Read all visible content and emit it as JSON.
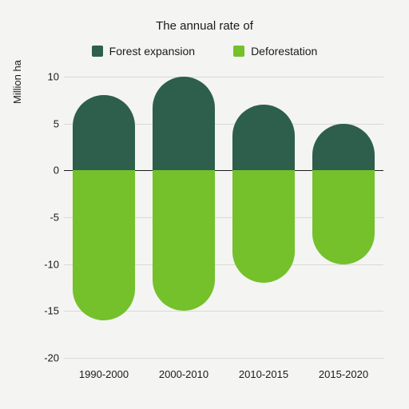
{
  "chart": {
    "type": "bar",
    "title": "The annual rate of",
    "title_fontsize": 15,
    "ylabel": "Million ha",
    "label_fontsize": 13,
    "background_color": "#f4f4f2",
    "grid_color": "#d9d9d6",
    "zero_line_color": "#1a1a1a",
    "ylim": [
      -20,
      10
    ],
    "ytick_step": 5,
    "yticks": [
      10,
      5,
      0,
      -5,
      -10,
      -15,
      -20
    ],
    "bar_width": 0.78,
    "categories": [
      "1990-2000",
      "2000-2010",
      "2010-2015",
      "2015-2020"
    ],
    "series": {
      "expansion": {
        "label": "Forest expansion",
        "color": "#2d5f4c",
        "values": [
          8,
          10,
          7,
          5
        ]
      },
      "deforestation": {
        "label": "Deforestation",
        "color": "#74c12b",
        "values": [
          -16,
          -15,
          -12,
          -10
        ]
      }
    }
  }
}
